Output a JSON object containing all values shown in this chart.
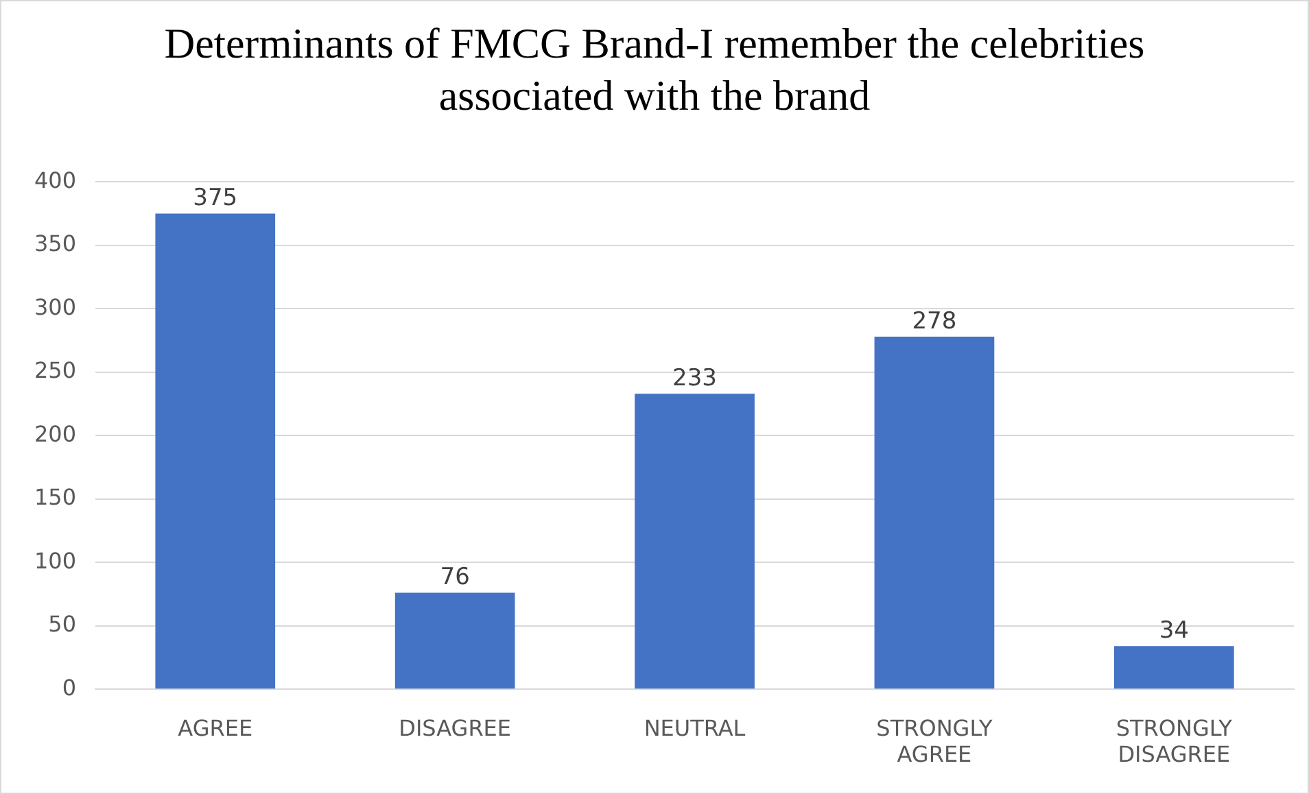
{
  "chart_data": {
    "type": "bar",
    "title": "Determinants of FMCG Brand-I remember the celebrities associated with the brand",
    "categories": [
      "AGREE",
      "DISAGREE",
      "NEUTRAL",
      "STRONGLY AGREE",
      "STRONGLY DISAGREE"
    ],
    "values": [
      375,
      76,
      233,
      278,
      34
    ],
    "color": "#4472c4",
    "ylim": [
      0,
      400
    ],
    "yticks": [
      0,
      50,
      100,
      150,
      200,
      250,
      300,
      350,
      400
    ],
    "grid": "y",
    "data_labels": true,
    "legend": false
  }
}
